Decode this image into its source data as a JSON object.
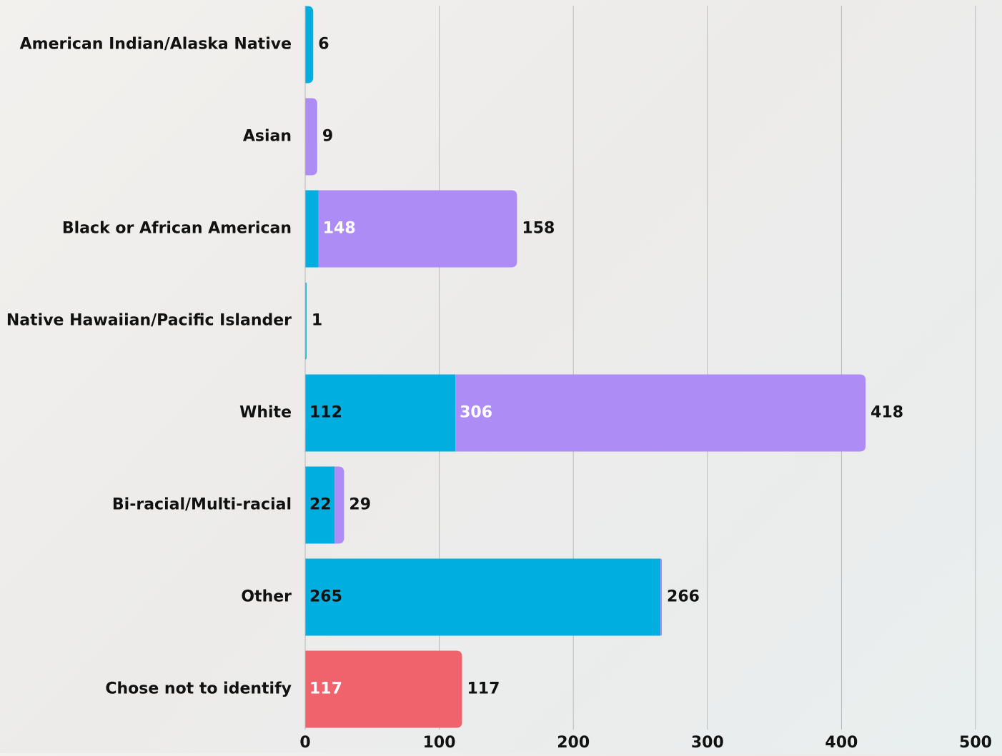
{
  "chart_data": {
    "type": "stacked_bar",
    "orientation": "horizontal",
    "categories": [
      "American Indian/Alaska Native",
      "Asian",
      "Black or African American",
      "Native Hawaiian/Pacific Islander",
      "White",
      "Bi-racial/Multi-racial",
      "Other",
      "Chose not to identify"
    ],
    "series": [
      {
        "color": "#00aee0",
        "label_color": "#111111",
        "values": [
          6,
          null,
          10,
          1,
          112,
          22,
          265,
          null
        ]
      },
      {
        "color": "#ae8cf5",
        "label_color": "#ffffff",
        "values": [
          null,
          9,
          148,
          null,
          306,
          7,
          1,
          null
        ]
      },
      {
        "color": "#f0636c",
        "label_color": "#ffffff",
        "values": [
          null,
          null,
          null,
          null,
          null,
          null,
          null,
          117
        ]
      }
    ],
    "totals": [
      6,
      9,
      158,
      1,
      418,
      29,
      266,
      117
    ],
    "xlim": [
      0,
      500
    ],
    "xticks": [
      0,
      100,
      200,
      300,
      400,
      500
    ],
    "grid": true
  }
}
